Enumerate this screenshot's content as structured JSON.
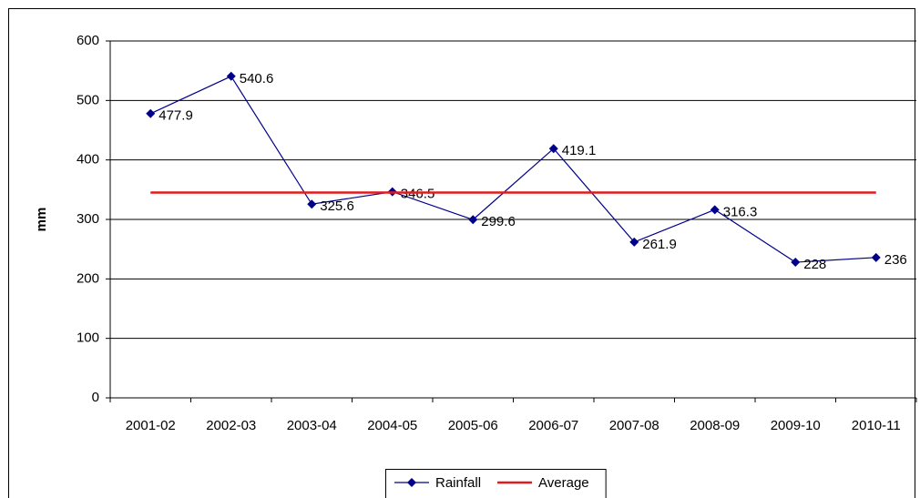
{
  "chart_data": {
    "type": "line",
    "y_label": "mm",
    "categories": [
      "2001-02",
      "2002-03",
      "2003-04",
      "2004-05",
      "2005-06",
      "2006-07",
      "2007-08",
      "2008-09",
      "2009-10",
      "2010-11"
    ],
    "series": [
      {
        "name": "Rainfall",
        "color": "#00008b",
        "marker": "diamond",
        "data_labels": true,
        "values": [
          477.9,
          540.6,
          325.6,
          346.5,
          299.6,
          419.1,
          261.9,
          316.3,
          228,
          236
        ]
      },
      {
        "name": "Average",
        "color": "#e31a1c",
        "marker": "none",
        "data_labels": false,
        "values": [
          345.15,
          345.15,
          345.15,
          345.15,
          345.15,
          345.15,
          345.15,
          345.15,
          345.15,
          345.15
        ]
      }
    ],
    "ylim": [
      0,
      600
    ],
    "yticks": [
      0,
      100,
      200,
      300,
      400,
      500,
      600
    ],
    "grid": true,
    "legend": "bottom"
  }
}
